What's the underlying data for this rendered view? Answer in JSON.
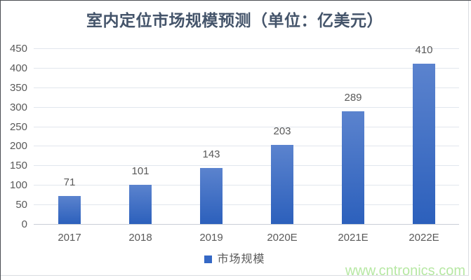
{
  "chart_data": {
    "type": "bar",
    "title": "室内定位市场规模预测（单位：亿美元）",
    "categories": [
      "2017",
      "2018",
      "2019",
      "2020E",
      "2021E",
      "2022E"
    ],
    "values": [
      71,
      101,
      143,
      203,
      289,
      410
    ],
    "series_name": "市场规模",
    "xlabel": "",
    "ylabel": "",
    "ylim": [
      0,
      450
    ],
    "yticks": [
      0,
      50,
      100,
      150,
      200,
      250,
      300,
      350,
      400,
      450
    ],
    "grid": true,
    "legend_position": "bottom",
    "value_labels_shown": true
  },
  "legend": {
    "label": "市场规模",
    "swatch_color": "#3568c5"
  },
  "watermark": {
    "text": "www.cntronics.com",
    "color": "#b7e8a4"
  },
  "colors": {
    "title": "#44546a",
    "axis_text": "#595959",
    "gridline": "#e1e6ed",
    "axis_line": "#c8ced6",
    "bar_gradient_top": "#5b83ce",
    "bar_gradient_bottom": "#2c60bc"
  }
}
